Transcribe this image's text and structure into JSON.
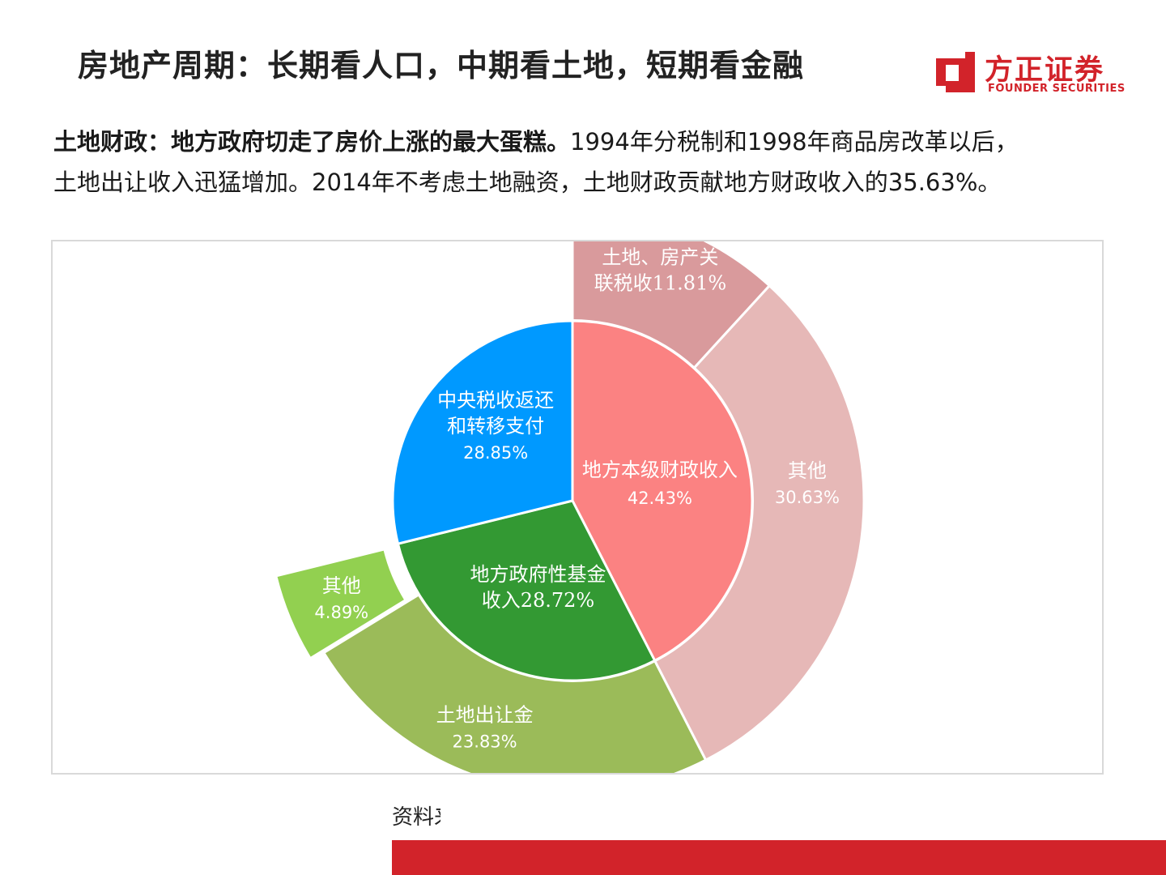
{
  "header": {
    "title": "房地产周期：长期看人口，中期看土地，短期看金融"
  },
  "logo": {
    "cn": "方正证券",
    "en": "FOUNDER SECURITIES",
    "color": "#d2232a"
  },
  "intro": {
    "bold": "土地财政：地方政府切走了房价上涨的最大蛋糕。",
    "rest": "1994年分税制和1998年商品房改革以后，",
    "line2": "土地出让收入迅猛增加。2014年不考虑土地融资，土地财政贡献地方财政收入的35.63%。"
  },
  "source": {
    "text": "资料来源"
  },
  "chart_data": {
    "type": "pie",
    "title": "",
    "inner": [
      {
        "name": "地方本级财政收入",
        "value": 42.43,
        "display": "42.43%",
        "color": "#fb8282"
      },
      {
        "name": "地方政府性基金收入",
        "value": 28.72,
        "display": "28.72%",
        "color": "#339933"
      },
      {
        "name": "中央税收返还和转移支付",
        "value": 28.85,
        "display": "28.85%",
        "color": "#0099ff"
      }
    ],
    "outer": [
      {
        "name": "土地、房产关联税收",
        "value": 11.81,
        "display": "11.81%",
        "color": "#d99a9c"
      },
      {
        "name": "其他",
        "value": 30.63,
        "display": "30.63%",
        "color": "#e6b8b7"
      },
      {
        "name": "土地出让金",
        "value": 23.83,
        "display": "23.83%",
        "color": "#9bbb59"
      },
      {
        "name": "其他",
        "value": 4.89,
        "display": "4.89%",
        "color": "#92d050"
      }
    ]
  }
}
